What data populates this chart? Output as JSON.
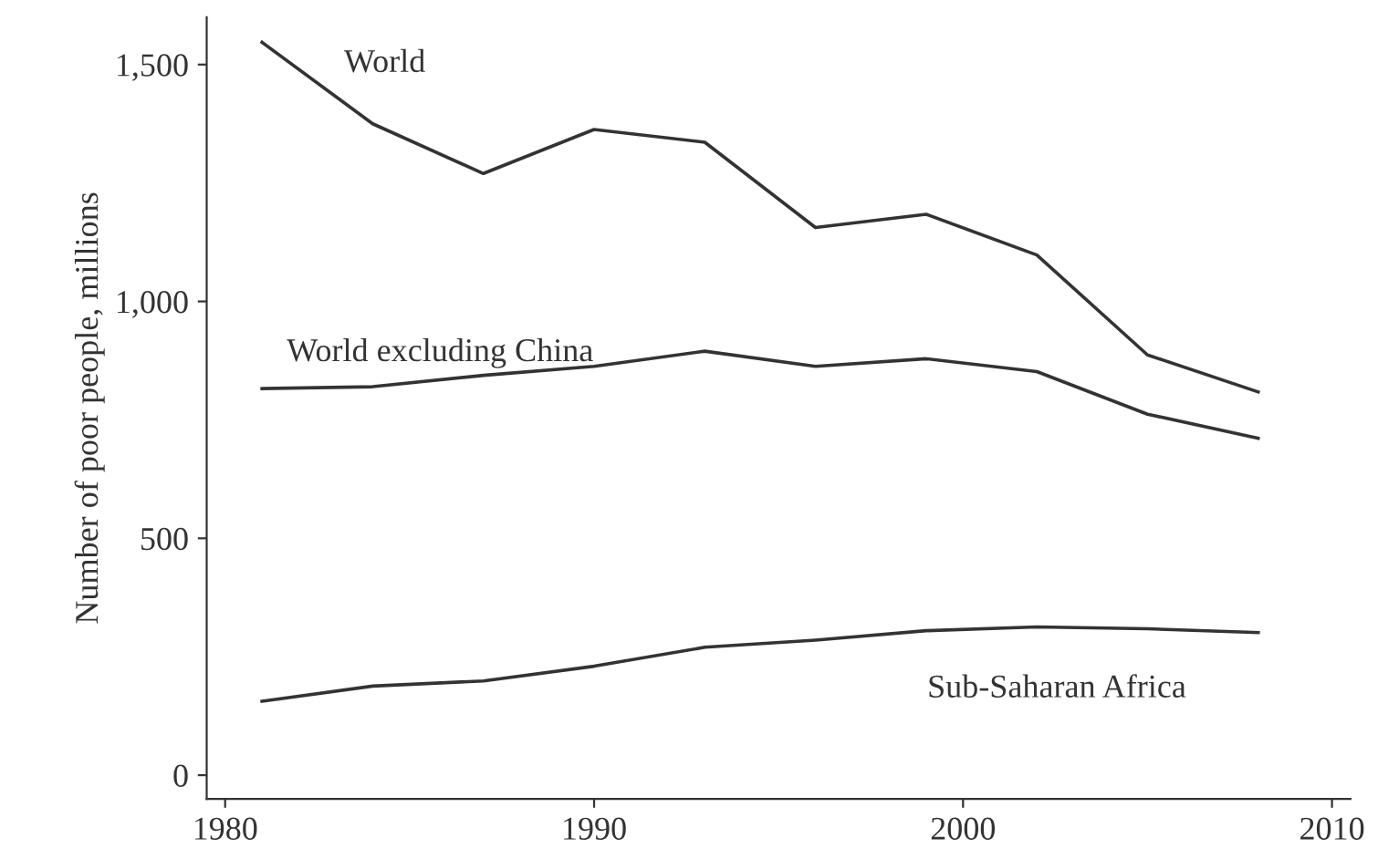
{
  "chart_data": {
    "type": "line",
    "ylabel": "Number of poor people, millions",
    "x": [
      1981,
      1984,
      1987,
      1990,
      1993,
      1996,
      1999,
      2002,
      2005,
      2008
    ],
    "series": [
      {
        "name": "World",
        "color": "#333333",
        "values": [
          1547,
          1375,
          1270,
          1363,
          1336,
          1156,
          1184,
          1098,
          887,
          809
        ]
      },
      {
        "name": "World excluding China",
        "color": "#333333",
        "values": [
          816,
          820,
          844,
          863,
          895,
          863,
          879,
          852,
          762,
          711
        ]
      },
      {
        "name": "Sub-Saharan Africa",
        "color": "#333333",
        "values": [
          156,
          188,
          199,
          230,
          270,
          285,
          305,
          313,
          309,
          301
        ]
      }
    ],
    "xlim": [
      1979.5,
      2010.5
    ],
    "xticks": [
      1980,
      1990,
      2000,
      2010
    ],
    "ylim": [
      -50,
      1600
    ],
    "yticks": [
      0,
      500,
      {
        "value": 1000,
        "label": "1,000"
      },
      {
        "value": 1500,
        "label": "1,500"
      }
    ],
    "grid": false,
    "legend": false,
    "marker": "none",
    "line_style": "solid"
  }
}
